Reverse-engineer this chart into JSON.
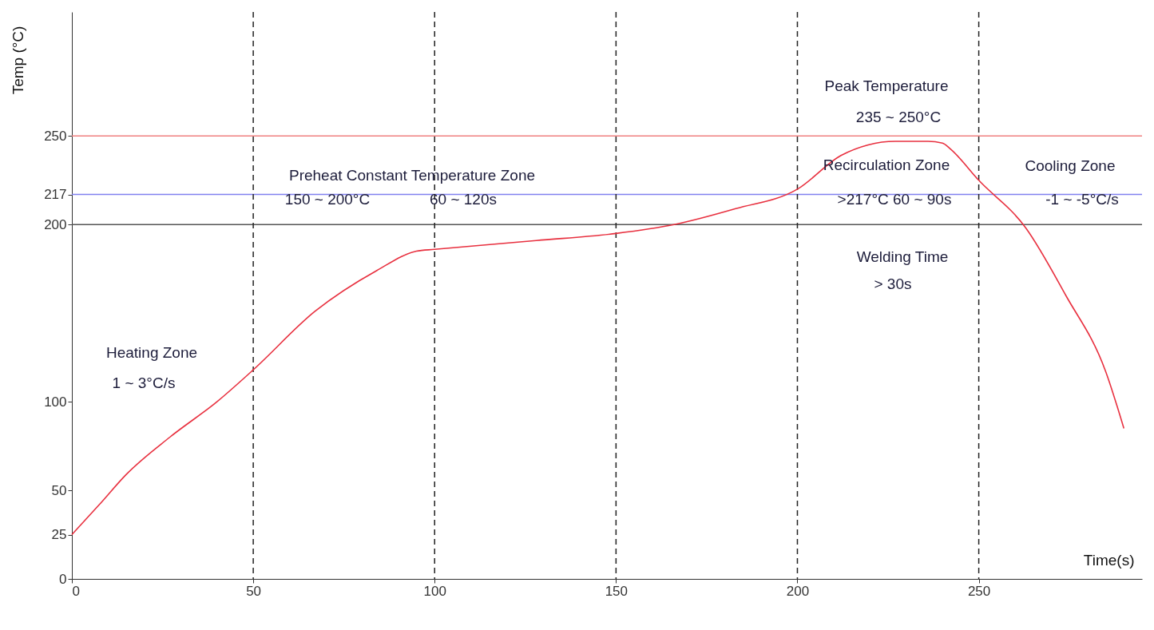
{
  "chart_data": {
    "type": "line",
    "xlabel": "Time(s)",
    "ylabel": "Temp (°C)",
    "x": [
      0,
      7.6,
      15,
      27,
      40,
      50,
      67,
      84,
      95,
      100,
      128,
      150,
      166,
      183,
      200,
      212,
      219.5,
      227,
      236,
      240,
      242,
      250,
      263,
      274,
      285,
      290
    ],
    "series": [
      {
        "color": "#e8303f",
        "values": [
          25,
          42,
          59,
          80,
          100,
          118,
          151,
          174,
          185,
          186,
          191,
          195,
          200,
          209,
          220,
          239,
          245,
          247,
          247,
          246,
          243,
          225,
          198,
          160,
          117,
          85
        ]
      }
    ],
    "xlim": [
      0,
      295
    ],
    "ylim": [
      0,
      320
    ],
    "xticks": [
      0,
      50,
      100,
      150,
      200,
      250
    ],
    "yticks": [
      0,
      25,
      50,
      100,
      200,
      217,
      250
    ],
    "grid": false,
    "ref_lines": [
      {
        "axis": "y",
        "value": 250,
        "color": "#f08080"
      },
      {
        "axis": "y",
        "value": 217,
        "color": "#8080f0"
      },
      {
        "axis": "y",
        "value": 200,
        "color": "#555555"
      },
      {
        "axis": "x",
        "value": 50,
        "color": "#222222",
        "line_style": "dashed"
      },
      {
        "axis": "x",
        "value": 100,
        "color": "#222222",
        "line_style": "dashed"
      },
      {
        "axis": "x",
        "value": 150,
        "color": "#222222",
        "line_style": "dashed"
      },
      {
        "axis": "x",
        "value": 200,
        "color": "#222222",
        "line_style": "dashed"
      },
      {
        "axis": "x",
        "value": 250,
        "color": "#222222",
        "line_style": "dashed"
      }
    ],
    "annotations": [
      "Peak Temperature",
      "235 ~ 250°C",
      "Preheat Constant Temperature Zone",
      "150 ~ 200°C",
      "60 ~ 120s",
      "Recirculation Zone",
      ">217°C  60 ~ 90s",
      "Cooling Zone",
      "-1 ~ -5°C/s",
      "Welding Time",
      "> 30s",
      "Heating Zone",
      "1 ~ 3°C/s"
    ]
  }
}
